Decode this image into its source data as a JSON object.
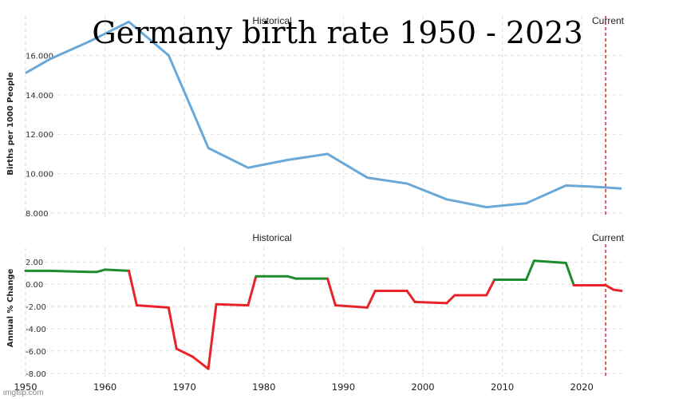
{
  "title": "Germany birth rate 1950 - 2023",
  "watermark": "imgflip.com",
  "chart_data": [
    {
      "type": "line",
      "ylabel": "Births per 1000 People",
      "region_labels": [
        "Historical",
        "Current"
      ],
      "ylim": [
        7.8,
        18.0
      ],
      "yticks": [
        8,
        10,
        12,
        14,
        16
      ],
      "ytick_labels": [
        "8.000",
        "10.000",
        "12.000",
        "14.000",
        "16.000"
      ],
      "current_year": 2023,
      "series": [
        {
          "color": "#6aa8d8",
          "x": [
            1950,
            1953,
            1958,
            1963,
            1968,
            1971,
            1973,
            1978,
            1983,
            1988,
            1993,
            1998,
            2003,
            2008,
            2013,
            2018,
            2021,
            2023,
            2025
          ],
          "y": [
            15.1,
            15.8,
            16.7,
            17.7,
            16.0,
            13.2,
            11.3,
            10.3,
            10.7,
            11.0,
            9.8,
            9.5,
            8.7,
            8.3,
            8.5,
            9.4,
            9.35,
            9.3,
            9.25
          ]
        }
      ]
    },
    {
      "type": "line",
      "ylabel": "Annual % Change",
      "region_labels": [
        "Historical",
        "Current"
      ],
      "ylim": [
        -8.3,
        3.3
      ],
      "yticks": [
        -8,
        -6,
        -4,
        -2,
        0,
        2
      ],
      "ytick_labels": [
        "-8.00",
        "-6.00",
        "-4.00",
        "-2.00",
        "0.00",
        "2.00"
      ],
      "xlim": [
        1950,
        2025
      ],
      "xticks": [
        1950,
        1960,
        1970,
        1980,
        1990,
        2000,
        2010,
        2020
      ],
      "current_year": 2023,
      "positive_color": "#1e8c2e",
      "negative_color": "#e8232a",
      "series": [
        {
          "x": [
            1950,
            1953,
            1958,
            1959,
            1960,
            1963,
            1964,
            1968,
            1969,
            1971,
            1973,
            1974,
            1978,
            1979,
            1983,
            1984,
            1988,
            1989,
            1993,
            1994,
            1998,
            1999,
            2003,
            2004,
            2008,
            2009,
            2013,
            2014,
            2018,
            2019,
            2023,
            2024,
            2025
          ],
          "y": [
            1.2,
            1.2,
            1.1,
            1.1,
            1.3,
            1.2,
            -1.9,
            -2.1,
            -5.8,
            -6.5,
            -7.6,
            -1.8,
            -1.9,
            0.7,
            0.7,
            0.5,
            0.5,
            -1.9,
            -2.1,
            -0.6,
            -0.6,
            -1.6,
            -1.7,
            -1.0,
            -1.0,
            0.4,
            0.4,
            2.1,
            1.9,
            -0.1,
            -0.1,
            -0.5,
            -0.6
          ]
        }
      ]
    }
  ]
}
